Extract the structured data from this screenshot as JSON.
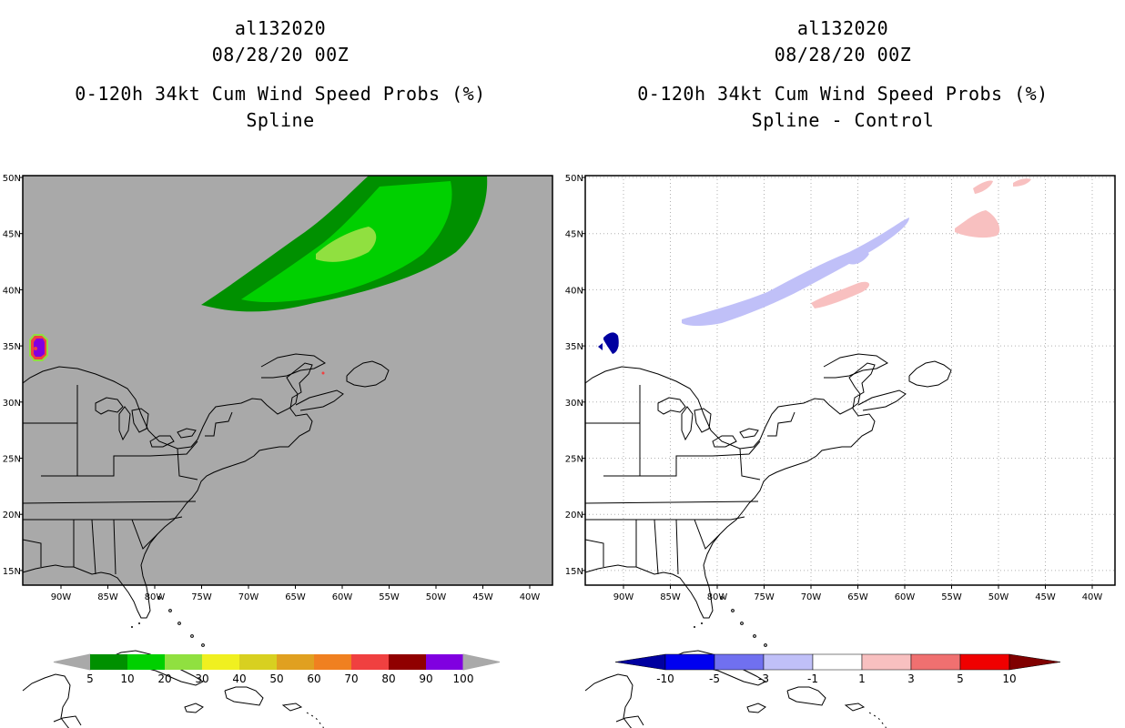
{
  "left_panel": {
    "storm_id": "al132020",
    "datetime": "08/28/20 00Z",
    "title": "0-120h 34kt Cum Wind Speed Probs (%)",
    "subtitle": "Spline",
    "background_color": "#a9a9a9",
    "colorbar": {
      "labels": [
        "5",
        "10",
        "20",
        "30",
        "40",
        "50",
        "60",
        "70",
        "80",
        "90",
        "100"
      ],
      "colors": [
        "#009000",
        "#00d000",
        "#90e040",
        "#f0f020",
        "#d8d020",
        "#e0a020",
        "#f08020",
        "#f04040",
        "#900000",
        "#8000e0"
      ]
    }
  },
  "right_panel": {
    "storm_id": "al132020",
    "datetime": "08/28/20 00Z",
    "title": "0-120h 34kt Cum Wind Speed Probs (%)",
    "subtitle": "Spline - Control",
    "background_color": "#ffffff",
    "colorbar": {
      "labels": [
        "-10",
        "-5",
        "-3",
        "-1",
        "1",
        "3",
        "5",
        "10"
      ],
      "colors": [
        "#0000a0",
        "#0000f0",
        "#7070f0",
        "#c0c0f8",
        "#ffffff",
        "#f8c0c0",
        "#f07070",
        "#f00000",
        "#800000"
      ]
    }
  },
  "map": {
    "lon_labels": [
      "90W",
      "85W",
      "80W",
      "75W",
      "70W",
      "65W",
      "60W",
      "55W",
      "50W",
      "45W",
      "40W"
    ],
    "lat_labels": [
      "50N",
      "45N",
      "40N",
      "35N",
      "30N",
      "25N",
      "20N",
      "15N"
    ]
  }
}
